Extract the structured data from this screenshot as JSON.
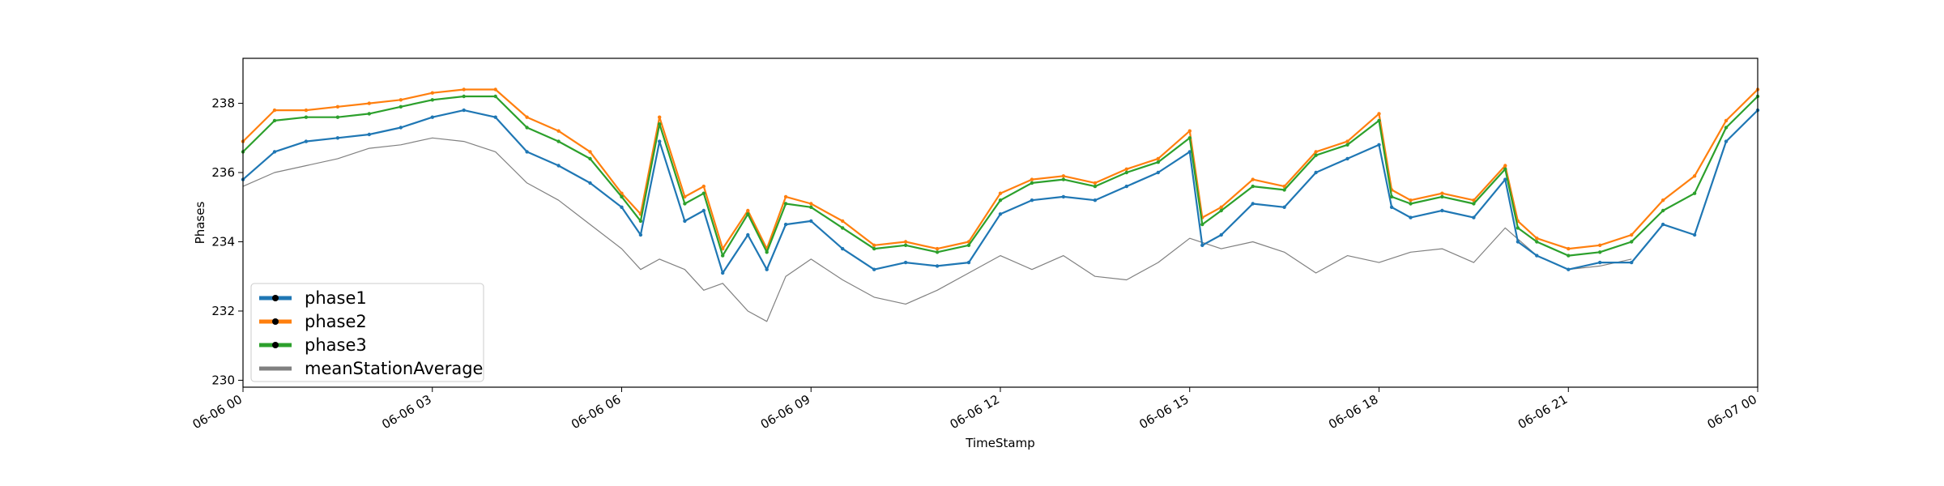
{
  "chart_data": {
    "type": "line",
    "xlabel": "TimeStamp",
    "ylabel": "Phases",
    "xlim": [
      "2018-06-06 00:00",
      "2018-06-07 00:00"
    ],
    "ylim": [
      229.8,
      239.3
    ],
    "x_ticks": [
      {
        "value": 0,
        "label": "06-06 00"
      },
      {
        "value": 3,
        "label": "06-06 03"
      },
      {
        "value": 6,
        "label": "06-06 06"
      },
      {
        "value": 9,
        "label": "06-06 09"
      },
      {
        "value": 12,
        "label": "06-06 12"
      },
      {
        "value": 15,
        "label": "06-06 15"
      },
      {
        "value": 18,
        "label": "06-06 18"
      },
      {
        "value": 21,
        "label": "06-06 21"
      },
      {
        "value": 24,
        "label": "06-07 00"
      }
    ],
    "y_ticks": [
      230,
      232,
      234,
      236,
      238
    ],
    "grid": false,
    "legend_position": "lower-left",
    "x_unit": "hours since 06-06 00",
    "series": [
      {
        "name": "phase1",
        "color": "#1f77b4",
        "marker": "circle",
        "x": [
          0,
          0.5,
          1,
          1.5,
          2,
          2.5,
          3,
          3.5,
          4,
          4.5,
          5,
          5.5,
          6,
          6.3,
          6.6,
          7,
          7.3,
          7.6,
          8,
          8.3,
          8.6,
          9,
          9.5,
          10,
          10.5,
          11,
          11.5,
          12,
          12.5,
          13,
          13.5,
          14,
          14.5,
          15,
          15.2,
          15.5,
          16,
          16.5,
          17,
          17.5,
          18,
          18.2,
          18.5,
          19,
          19.5,
          20,
          20.2,
          20.5,
          21,
          21.5,
          22,
          22.5,
          23,
          23.5,
          24
        ],
        "y": [
          235.8,
          236.6,
          236.9,
          237.0,
          237.1,
          237.3,
          237.6,
          237.8,
          237.6,
          236.6,
          236.2,
          235.7,
          235.0,
          234.2,
          236.9,
          234.6,
          234.9,
          233.1,
          234.2,
          233.2,
          234.5,
          234.6,
          233.8,
          233.2,
          233.4,
          233.3,
          233.4,
          234.8,
          235.2,
          235.3,
          235.2,
          235.6,
          236.0,
          236.6,
          233.9,
          234.2,
          235.1,
          235.0,
          236.0,
          236.4,
          236.8,
          235.0,
          234.7,
          234.9,
          234.7,
          235.8,
          234.0,
          233.6,
          233.2,
          233.4,
          233.4,
          234.5,
          234.2,
          236.9,
          237.8
        ]
      },
      {
        "name": "phase2",
        "color": "#ff7f0e",
        "marker": "circle",
        "x": [
          0,
          0.5,
          1,
          1.5,
          2,
          2.5,
          3,
          3.5,
          4,
          4.5,
          5,
          5.5,
          6,
          6.3,
          6.6,
          7,
          7.3,
          7.6,
          8,
          8.3,
          8.6,
          9,
          9.5,
          10,
          10.5,
          11,
          11.5,
          12,
          12.5,
          13,
          13.5,
          14,
          14.5,
          15,
          15.2,
          15.5,
          16,
          16.5,
          17,
          17.5,
          18,
          18.2,
          18.5,
          19,
          19.5,
          20,
          20.2,
          20.5,
          21,
          21.5,
          22,
          22.5,
          23,
          23.5,
          24
        ],
        "y": [
          236.9,
          237.8,
          237.8,
          237.9,
          238.0,
          238.1,
          238.3,
          238.4,
          238.4,
          237.6,
          237.2,
          236.6,
          235.4,
          234.8,
          237.6,
          235.3,
          235.6,
          233.8,
          234.9,
          233.8,
          235.3,
          235.1,
          234.6,
          233.9,
          234.0,
          233.8,
          234.0,
          235.4,
          235.8,
          235.9,
          235.7,
          236.1,
          236.4,
          237.2,
          234.7,
          235.0,
          235.8,
          235.6,
          236.6,
          236.9,
          237.7,
          235.5,
          235.2,
          235.4,
          235.2,
          236.2,
          234.6,
          234.1,
          233.8,
          233.9,
          234.2,
          235.2,
          235.9,
          237.5,
          238.4
        ]
      },
      {
        "name": "phase3",
        "color": "#2ca02c",
        "marker": "circle",
        "x": [
          0,
          0.5,
          1,
          1.5,
          2,
          2.5,
          3,
          3.5,
          4,
          4.5,
          5,
          5.5,
          6,
          6.3,
          6.6,
          7,
          7.3,
          7.6,
          8,
          8.3,
          8.6,
          9,
          9.5,
          10,
          10.5,
          11,
          11.5,
          12,
          12.5,
          13,
          13.5,
          14,
          14.5,
          15,
          15.2,
          15.5,
          16,
          16.5,
          17,
          17.5,
          18,
          18.2,
          18.5,
          19,
          19.5,
          20,
          20.2,
          20.5,
          21,
          21.5,
          22,
          22.5,
          23,
          23.5,
          24
        ],
        "y": [
          236.6,
          237.5,
          237.6,
          237.6,
          237.7,
          237.9,
          238.1,
          238.2,
          238.2,
          237.3,
          236.9,
          236.4,
          235.3,
          234.6,
          237.4,
          235.1,
          235.4,
          233.6,
          234.8,
          233.7,
          235.1,
          235.0,
          234.4,
          233.8,
          233.9,
          233.7,
          233.9,
          235.2,
          235.7,
          235.8,
          235.6,
          236.0,
          236.3,
          237.0,
          234.5,
          234.9,
          235.6,
          235.5,
          236.5,
          236.8,
          237.5,
          235.3,
          235.1,
          235.3,
          235.1,
          236.1,
          234.4,
          234.0,
          233.6,
          233.7,
          234.0,
          234.9,
          235.4,
          237.3,
          238.2
        ]
      },
      {
        "name": "meanStationAverage",
        "color": "#808080",
        "marker": "none",
        "x": [
          0,
          0.5,
          1,
          1.5,
          2,
          2.5,
          3,
          3.5,
          4,
          4.5,
          5,
          5.5,
          6,
          6.3,
          6.6,
          7,
          7.3,
          7.6,
          8,
          8.3,
          8.6,
          9,
          9.5,
          10,
          10.5,
          11,
          11.5,
          12,
          12.5,
          13,
          13.5,
          14,
          14.5,
          15,
          15.5,
          16,
          16.5,
          17,
          17.5,
          18,
          18.5,
          19,
          19.5,
          20,
          20.5,
          21,
          21.5,
          22
        ],
        "y": [
          235.6,
          236.0,
          236.2,
          236.4,
          236.7,
          236.8,
          237.0,
          236.9,
          236.6,
          235.7,
          235.2,
          234.5,
          233.8,
          233.2,
          233.5,
          233.2,
          232.6,
          232.8,
          232.0,
          231.7,
          233.0,
          233.5,
          232.9,
          232.4,
          232.2,
          232.6,
          233.1,
          233.6,
          233.2,
          233.6,
          233.0,
          232.9,
          233.4,
          234.1,
          233.8,
          234.0,
          233.7,
          233.1,
          233.6,
          233.4,
          233.7,
          233.8,
          233.4,
          234.4,
          233.6,
          233.2,
          233.3,
          233.5
        ]
      }
    ]
  }
}
